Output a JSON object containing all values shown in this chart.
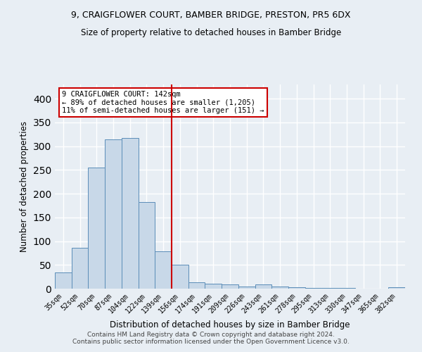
{
  "title1": "9, CRAIGFLOWER COURT, BAMBER BRIDGE, PRESTON, PR5 6DX",
  "title2": "Size of property relative to detached houses in Bamber Bridge",
  "xlabel": "Distribution of detached houses by size in Bamber Bridge",
  "ylabel": "Number of detached properties",
  "bar_labels": [
    "35sqm",
    "52sqm",
    "70sqm",
    "87sqm",
    "104sqm",
    "122sqm",
    "139sqm",
    "156sqm",
    "174sqm",
    "191sqm",
    "209sqm",
    "226sqm",
    "243sqm",
    "261sqm",
    "278sqm",
    "295sqm",
    "313sqm",
    "330sqm",
    "347sqm",
    "365sqm",
    "382sqm"
  ],
  "bar_values": [
    34,
    86,
    255,
    315,
    318,
    182,
    78,
    51,
    14,
    11,
    9,
    5,
    9,
    5,
    3,
    1,
    1,
    1,
    0,
    0,
    3
  ],
  "bar_color": "#c8d8e8",
  "bar_edge_color": "#5b8db8",
  "vline_color": "#cc0000",
  "annotation_text": "9 CRAIGFLOWER COURT: 142sqm\n← 89% of detached houses are smaller (1,205)\n11% of semi-detached houses are larger (151) →",
  "annotation_box_color": "#ffffff",
  "annotation_box_edge": "#cc0000",
  "footnote": "Contains HM Land Registry data © Crown copyright and database right 2024.\nContains public sector information licensed under the Open Government Licence v3.0.",
  "ylim": [
    0,
    430
  ],
  "bg_color": "#e8eef4",
  "grid_color": "#ffffff"
}
